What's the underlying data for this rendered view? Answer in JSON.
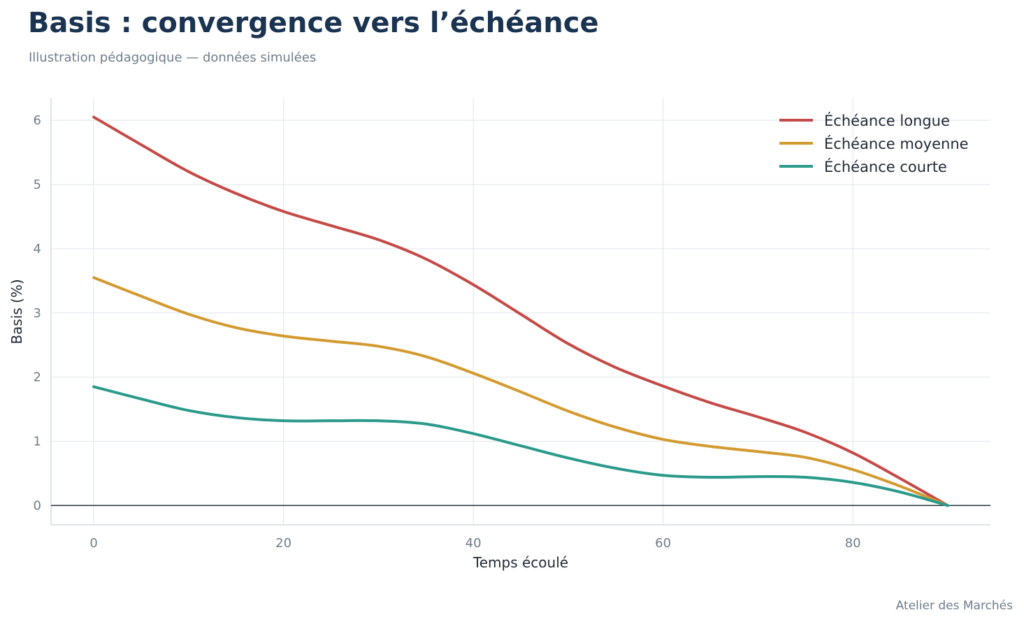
{
  "header": {
    "title": "Basis : convergence vers l’échéance",
    "subtitle": "Illustration pédagogique — données simulées"
  },
  "footer": {
    "credit": "Atelier des Marchés"
  },
  "chart_data": {
    "type": "line",
    "title": "Basis : convergence vers l’échéance",
    "subtitle": "Illustration pédagogique — données simulées",
    "xlabel": "Temps écoulé",
    "ylabel": "Basis (%)",
    "xlim": [
      -4.5,
      94.5
    ],
    "ylim": [
      -0.3,
      6.35
    ],
    "xticks": [
      0,
      20,
      40,
      60,
      80
    ],
    "yticks": [
      0,
      1,
      2,
      3,
      4,
      5,
      6
    ],
    "grid": true,
    "legend_position": "top-right",
    "zero_line": true,
    "x": [
      0,
      5,
      10,
      15,
      20,
      25,
      30,
      35,
      40,
      45,
      50,
      55,
      60,
      65,
      70,
      75,
      80,
      85,
      90
    ],
    "series": [
      {
        "name": "Échéance longue",
        "color": "#c44a47",
        "values": [
          6.05,
          5.62,
          5.2,
          4.86,
          4.58,
          4.36,
          4.14,
          3.84,
          3.44,
          2.98,
          2.52,
          2.15,
          1.86,
          1.6,
          1.38,
          1.14,
          0.82,
          0.42,
          0.0
        ]
      },
      {
        "name": "Échéance moyenne",
        "color": "#d39a30",
        "values": [
          3.55,
          3.26,
          2.98,
          2.77,
          2.64,
          2.56,
          2.48,
          2.32,
          2.06,
          1.77,
          1.47,
          1.22,
          1.03,
          0.92,
          0.84,
          0.75,
          0.56,
          0.3,
          0.0
        ]
      },
      {
        "name": "Échéance courte",
        "color": "#2a9a8a",
        "values": [
          1.85,
          1.66,
          1.48,
          1.37,
          1.32,
          1.32,
          1.32,
          1.27,
          1.12,
          0.93,
          0.74,
          0.58,
          0.47,
          0.44,
          0.45,
          0.44,
          0.36,
          0.21,
          0.0
        ]
      }
    ]
  }
}
